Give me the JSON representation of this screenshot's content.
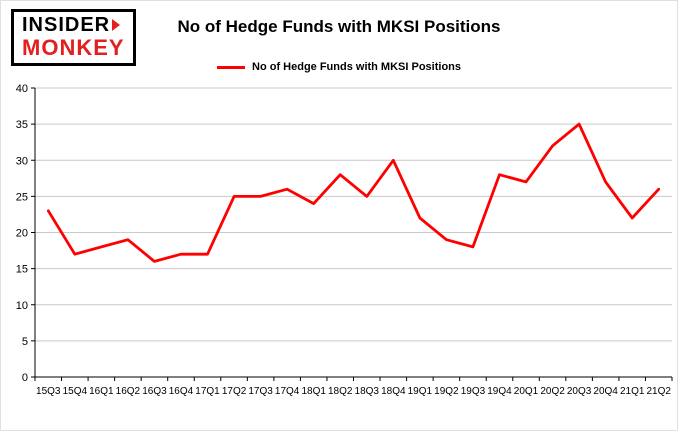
{
  "header": {
    "logo_line1": "INSIDER",
    "logo_line2": "MONKEY",
    "title": "No of Hedge Funds with MKSI Positions",
    "legend_label": "No of Hedge Funds with MKSI Positions"
  },
  "colors": {
    "line": "#fe0000",
    "grid": "#c9c9c9",
    "axis": "#000000",
    "tick_label": "#000000",
    "logo_red": "#e3201f"
  },
  "chart_data": {
    "type": "line",
    "title": "No of Hedge Funds with MKSI Positions",
    "legend": [
      "No of Hedge Funds with MKSI Positions"
    ],
    "legend_position": "top",
    "grid": true,
    "xlabel": "",
    "ylabel": "",
    "ylim": [
      0,
      40
    ],
    "yticks": [
      0,
      5,
      10,
      15,
      20,
      25,
      30,
      35,
      40
    ],
    "categories": [
      "15Q3",
      "15Q4",
      "16Q1",
      "16Q2",
      "16Q3",
      "16Q4",
      "17Q1",
      "17Q2",
      "17Q3",
      "17Q4",
      "18Q1",
      "18Q2",
      "18Q3",
      "18Q4",
      "19Q1",
      "19Q2",
      "19Q3",
      "19Q4",
      "20Q1",
      "20Q2",
      "20Q3",
      "20Q4",
      "21Q1",
      "21Q2"
    ],
    "values": [
      23,
      17,
      18,
      19,
      16,
      17,
      17,
      25,
      25,
      26,
      24,
      28,
      25,
      30,
      22,
      19,
      18,
      28,
      27,
      32,
      35,
      27,
      22,
      26
    ]
  }
}
